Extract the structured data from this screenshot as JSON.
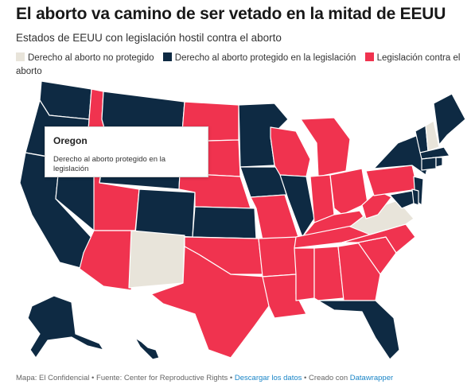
{
  "header": {
    "title": "El aborto va camino de ser vetado en la mitad de EEUU",
    "subtitle": "Estados de EEUU con legislación hostil contra el aborto"
  },
  "legend": [
    {
      "label": "Derecho al aborto no protegido",
      "color": "#e8e4da"
    },
    {
      "label": "Derecho al aborto protegido en la legislación",
      "color": "#0e2a43"
    },
    {
      "label": "Legislación contra el aborto",
      "color": "#f0334f"
    }
  ],
  "tooltip": {
    "state": "Oregon",
    "status": "Derecho al aborto protegido en la legislación"
  },
  "footer": {
    "source": "Mapa: El Confidencial • Fuente: Center for Reproductive Rights •",
    "download": "Descargar los datos",
    "created": "• Creado con",
    "tool": "Datawrapper"
  },
  "colors": {
    "protected": "#0e2a43",
    "hostile": "#f0334f",
    "notprotected": "#e8e4da",
    "border": "#ffffff"
  }
}
